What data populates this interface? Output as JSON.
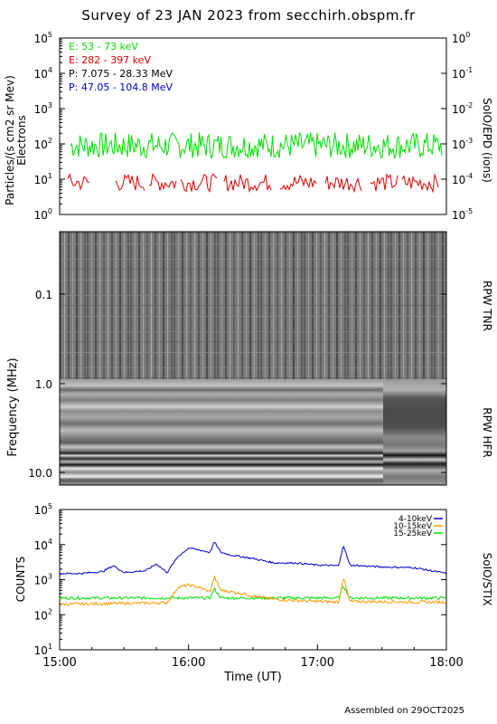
{
  "title": "Survey of 23 JAN 2023 from secchirh.obspm.fr",
  "footer": "Assembled on 29OCT2025",
  "chart_data": [
    {
      "type": "line",
      "panel": "SoIO/EPD",
      "ylabel": "Particles/(s cm2 sr Mev)",
      "ylabel2": "Electrons",
      "right_label": "SoIO/EPD (ions)",
      "y_scale": "log",
      "ylim": [
        1,
        100000
      ],
      "y_ticks": [
        {
          "label": "10",
          "exp": "0"
        },
        {
          "label": "10",
          "exp": "1"
        },
        {
          "label": "10",
          "exp": "2"
        },
        {
          "label": "10",
          "exp": "3"
        },
        {
          "label": "10",
          "exp": "4"
        },
        {
          "label": "10",
          "exp": "5"
        }
      ],
      "y2lim": [
        1e-05,
        1
      ],
      "y2_ticks": [
        {
          "label": "10",
          "exp": "-5"
        },
        {
          "label": "10",
          "exp": "-4"
        },
        {
          "label": "10",
          "exp": "-3"
        },
        {
          "label": "10",
          "exp": "-2"
        },
        {
          "label": "10",
          "exp": "-1"
        },
        {
          "label": "10",
          "exp": "0"
        }
      ],
      "legend_position": "top-left",
      "series": [
        {
          "name": "E: 53 - 73 keV",
          "color": "#00dd00",
          "approx_range": [
            40,
            250
          ],
          "typical": 90
        },
        {
          "name": "E: 282 - 397 keV",
          "color": "#dd0000",
          "approx_range": [
            4,
            22
          ],
          "typical": 8
        },
        {
          "name": "P: 7.075 - 28.33 MeV",
          "color": "#000000"
        },
        {
          "name": "P: 47.05 - 104.8 MeV",
          "color": "#0000cc"
        }
      ]
    },
    {
      "type": "heatmap",
      "panel": "RPW",
      "ylabel": "Frequency (MHz)",
      "y_scale": "log",
      "y_inverted": true,
      "y_ticks": [
        "0.1",
        "1.0",
        "10.0"
      ],
      "sub_panels": [
        {
          "name": "RPW TNR",
          "ylim": [
            0.004,
            1.0
          ]
        },
        {
          "name": "RPW HFR",
          "ylim": [
            1.0,
            16.0
          ]
        }
      ],
      "colormap": "grayscale"
    },
    {
      "type": "line",
      "panel": "SoIO/STIX",
      "ylabel": "COUNTS",
      "right_label": "SoIO/STIX",
      "y_scale": "log",
      "ylim": [
        10,
        100000
      ],
      "y_ticks": [
        {
          "label": "10",
          "exp": "1"
        },
        {
          "label": "10",
          "exp": "2"
        },
        {
          "label": "10",
          "exp": "3"
        },
        {
          "label": "10",
          "exp": "4"
        },
        {
          "label": "10",
          "exp": "5"
        }
      ],
      "xlabel": "Time (UT)",
      "x_ticks": [
        "15:00",
        "16:00",
        "17:00",
        "18:00"
      ],
      "xlim": [
        "15:00",
        "18:00"
      ],
      "legend_position": "top-right",
      "series": [
        {
          "name": "4-10keV",
          "color": "#0000cc",
          "x": [
            "15:00",
            "15:10",
            "15:20",
            "15:25",
            "15:30",
            "15:40",
            "15:45",
            "15:50",
            "15:55",
            "16:00",
            "16:05",
            "16:10",
            "16:12",
            "16:15",
            "16:20",
            "16:30",
            "16:40",
            "16:50",
            "17:00",
            "17:10",
            "17:12",
            "17:15",
            "17:30",
            "17:45",
            "18:00"
          ],
          "values": [
            1500,
            1500,
            1700,
            2500,
            1600,
            1800,
            2800,
            1600,
            4500,
            8000,
            7000,
            6000,
            12000,
            6000,
            5000,
            4000,
            3000,
            3000,
            2600,
            2500,
            10000,
            2600,
            2300,
            2200,
            1500
          ]
        },
        {
          "name": "10-15keV",
          "color": "#ff9900",
          "x": [
            "15:00",
            "15:30",
            "15:50",
            "15:55",
            "16:00",
            "16:05",
            "16:10",
            "16:12",
            "16:15",
            "16:25",
            "16:35",
            "16:45",
            "17:00",
            "17:10",
            "17:12",
            "17:15",
            "17:45",
            "18:00"
          ],
          "values": [
            200,
            210,
            220,
            600,
            700,
            600,
            450,
            1200,
            500,
            400,
            300,
            260,
            240,
            230,
            1200,
            240,
            230,
            230
          ]
        },
        {
          "name": "15-25keV",
          "color": "#00dd00",
          "x": [
            "15:00",
            "15:30",
            "16:00",
            "16:10",
            "16:12",
            "16:15",
            "16:30",
            "17:00",
            "17:10",
            "17:12",
            "17:15",
            "18:00"
          ],
          "values": [
            300,
            300,
            300,
            300,
            550,
            300,
            300,
            300,
            300,
            700,
            300,
            300
          ]
        }
      ]
    }
  ]
}
